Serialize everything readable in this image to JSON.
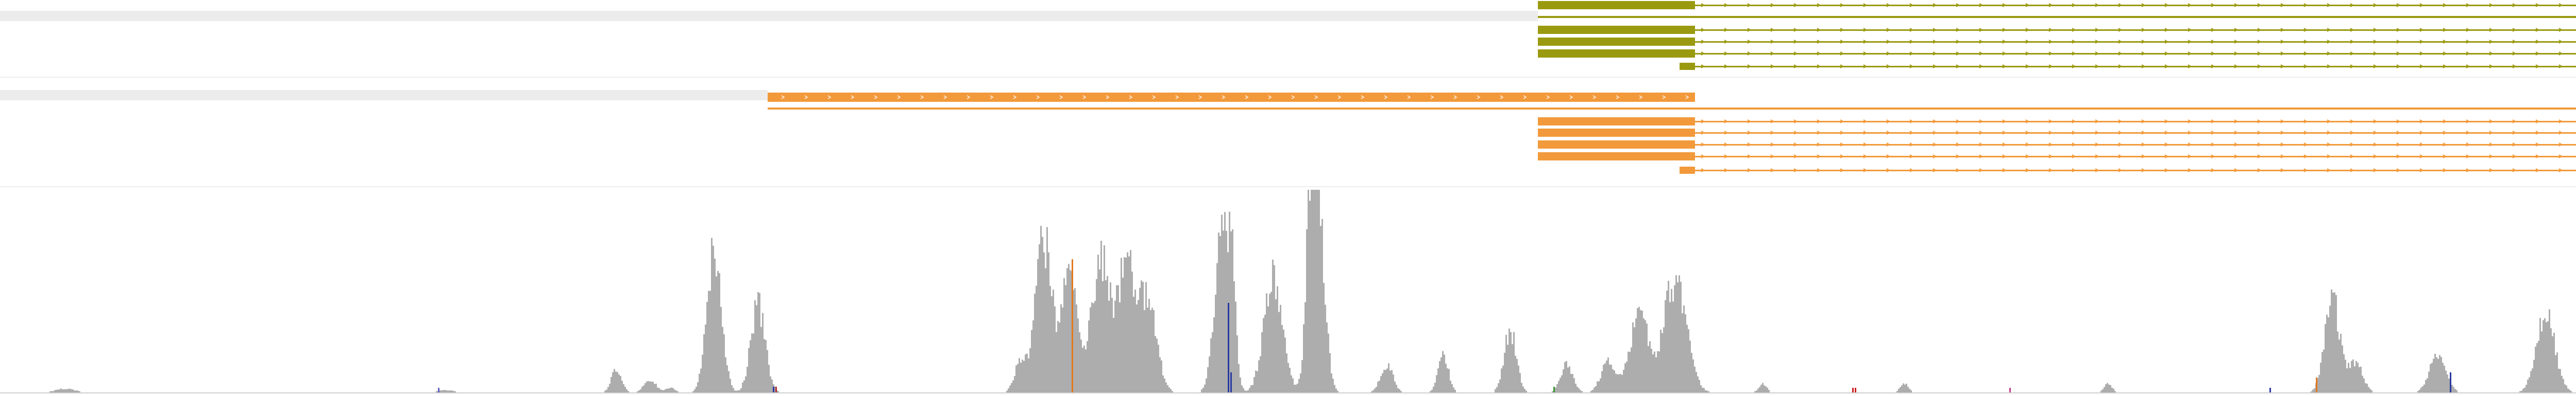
{
  "colors": {
    "gene_track": "#9a9a10",
    "transcript_track": "#f29a3b",
    "track_band": "#ececec",
    "coverage": "#adadad",
    "divider": "#e6e6e6",
    "baseline": "#cfcfcf"
  },
  "tracks": {
    "upper": {
      "name": "gene-models-olive",
      "color": "olive",
      "features": [
        {
          "kind": "exon+line",
          "strand": "+"
        },
        {
          "kind": "line",
          "strand": "+"
        },
        {
          "kind": "exon+line",
          "strand": "+"
        },
        {
          "kind": "exon+line",
          "strand": "+"
        },
        {
          "kind": "exon+line",
          "strand": "+"
        },
        {
          "kind": "small-exon+line",
          "strand": "+"
        }
      ]
    },
    "lower": {
      "name": "gene-models-orange",
      "color": "orange",
      "features": [
        {
          "kind": "long-exon",
          "strand": "+"
        },
        {
          "kind": "line",
          "strand": "+"
        },
        {
          "kind": "exon+line",
          "strand": "+"
        },
        {
          "kind": "exon+line",
          "strand": "+"
        },
        {
          "kind": "exon+line",
          "strand": "+"
        },
        {
          "kind": "exon+line",
          "strand": "+"
        },
        {
          "kind": "small-exon+line",
          "strand": "+"
        }
      ]
    }
  },
  "coverage": {
    "peak_count": 22
  }
}
